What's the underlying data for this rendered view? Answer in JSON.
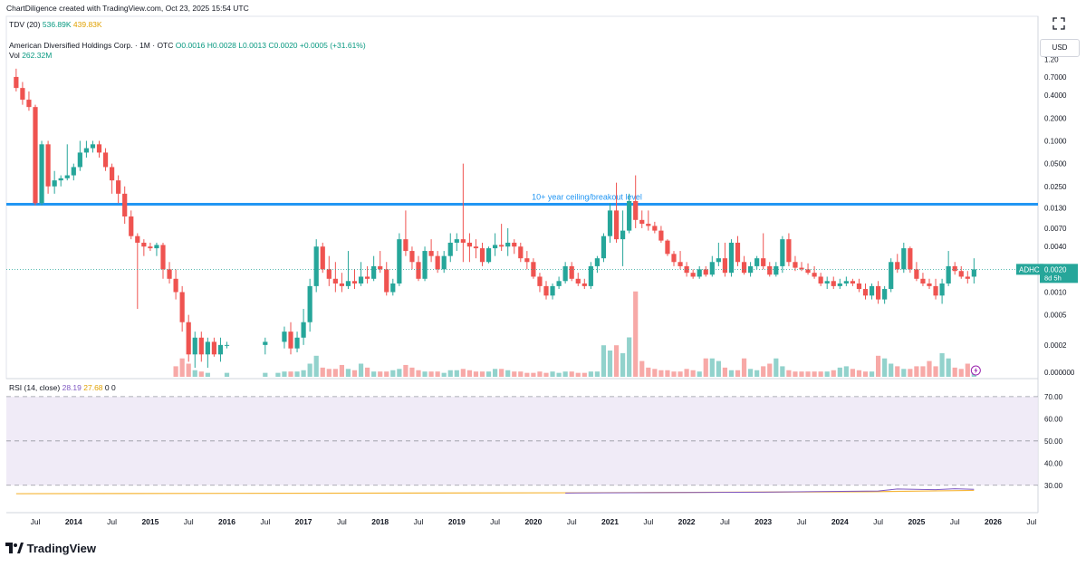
{
  "header": {
    "creator_line": "ChartDiligence created with TradingView.com, Oct 23, 2025 15:54 UTC"
  },
  "tdv": {
    "label": "TDV (20)",
    "v1": "536.89K",
    "v2": "439.83K"
  },
  "symbol": {
    "title": "American Diversified Holdings Corp. · 1M · OTC",
    "open": "O0.0016",
    "high": "H0.0028",
    "low": "L0.0013",
    "close": "C0.0020",
    "change": "+0.0005 (+31.61%)"
  },
  "vol": {
    "label": "Vol",
    "value": "262.32M"
  },
  "rsi": {
    "label": "RSI (14, close)",
    "v1": "28.19",
    "v2": "27.68",
    "v3": "0",
    "v4": "0"
  },
  "currency": "USD",
  "colors": {
    "up": "#26a69a",
    "down": "#ef5350",
    "line": "#2196f3",
    "rsi_bg": "#ede7f6",
    "rsi_line": "#7e57c2",
    "rsi_ma": "#f6b73c"
  },
  "price_tag": {
    "symbol": "ADHC",
    "price": "0.0020",
    "countdown": "8d 5h"
  },
  "brand": "TradingView",
  "chart_data": {
    "type": "candlestick",
    "scale": "log",
    "interval": "1M",
    "y_ticks": [
      "1.20",
      "0.7000",
      "0.4000",
      "0.2000",
      "0.1000",
      "0.0500",
      "0.0250",
      "0.0130",
      "0.0070",
      "0.0040",
      "0.0020",
      "0.0010",
      "0.0005",
      "0.0002",
      "0.000000"
    ],
    "x_ticks": [
      "Jul",
      "2014",
      "Jul",
      "2015",
      "Jul",
      "2016",
      "Jul",
      "2017",
      "Jul",
      "2018",
      "Jul",
      "2019",
      "Jul",
      "2020",
      "Jul",
      "2021",
      "Jul",
      "2022",
      "Jul",
      "2023",
      "Jul",
      "2024",
      "Jul",
      "2025",
      "Jul",
      "2026",
      "Jul"
    ],
    "annotation": {
      "text": "10+ year ceiling/breakout level",
      "level": 0.0145
    },
    "rsi_ticks": [
      "70.00",
      "60.00",
      "50.00",
      "40.00",
      "30.00"
    ],
    "rsi_range": [
      25,
      72
    ],
    "rsi_levels": [
      70,
      50,
      30
    ],
    "rsi_current": 28.19,
    "rsi_ma_current": 27.68,
    "candles": [
      [
        "2013-04",
        0.7,
        0.9,
        0.45,
        0.5
      ],
      [
        "2013-05",
        0.5,
        0.6,
        0.3,
        0.35
      ],
      [
        "2013-06",
        0.35,
        0.45,
        0.25,
        0.28
      ],
      [
        "2013-07",
        0.28,
        0.3,
        0.014,
        0.015
      ],
      [
        "2013-08",
        0.015,
        0.1,
        0.014,
        0.09
      ],
      [
        "2013-09",
        0.09,
        0.1,
        0.02,
        0.025
      ],
      [
        "2013-10",
        0.025,
        0.04,
        0.02,
        0.03
      ],
      [
        "2013-11",
        0.03,
        0.035,
        0.025,
        0.032
      ],
      [
        "2013-12",
        0.032,
        0.09,
        0.03,
        0.035
      ],
      [
        "2014-01",
        0.035,
        0.05,
        0.03,
        0.045
      ],
      [
        "2014-02",
        0.045,
        0.1,
        0.04,
        0.07
      ],
      [
        "2014-03",
        0.07,
        0.1,
        0.06,
        0.08
      ],
      [
        "2014-04",
        0.08,
        0.1,
        0.07,
        0.09
      ],
      [
        "2014-05",
        0.09,
        0.1,
        0.06,
        0.07
      ],
      [
        "2014-06",
        0.07,
        0.08,
        0.04,
        0.045
      ],
      [
        "2014-07",
        0.045,
        0.05,
        0.02,
        0.03
      ],
      [
        "2014-08",
        0.03,
        0.035,
        0.015,
        0.02
      ],
      [
        "2014-09",
        0.02,
        0.025,
        0.008,
        0.01
      ],
      [
        "2014-10",
        0.01,
        0.012,
        0.005,
        0.0055
      ],
      [
        "2014-11",
        0.0055,
        0.006,
        0.0006,
        0.0045
      ],
      [
        "2014-12",
        0.0045,
        0.005,
        0.003,
        0.004
      ],
      [
        "2015-01",
        0.004,
        0.0045,
        0.0035,
        0.0038
      ],
      [
        "2015-02",
        0.0038,
        0.0045,
        0.003,
        0.0042
      ],
      [
        "2015-03",
        0.0042,
        0.0045,
        0.0015,
        0.002
      ],
      [
        "2015-04",
        0.002,
        0.0025,
        0.0013,
        0.0015
      ],
      [
        "2015-05",
        0.0015,
        0.002,
        0.0008,
        0.001
      ],
      [
        "2015-06",
        0.001,
        0.0012,
        0.0003,
        0.0004
      ],
      [
        "2015-07",
        0.0004,
        0.0005,
        0.00012,
        0.00015
      ],
      [
        "2015-08",
        0.00015,
        0.0003,
        0.0001,
        0.00025
      ],
      [
        "2015-09",
        0.00025,
        0.0003,
        0.00012,
        0.00015
      ],
      [
        "2015-10",
        0.00015,
        0.00025,
        0.0001,
        0.00022
      ],
      [
        "2015-11",
        0.00022,
        0.00025,
        0.00014,
        0.00015
      ],
      [
        "2015-12",
        0.00015,
        0.00025,
        0.00012,
        0.0002
      ],
      [
        "2016-01",
        0.0002,
        0.00022,
        0.00018,
        0.0002
      ],
      [
        "2016-07",
        0.0002,
        0.00025,
        0.00015,
        0.00022
      ],
      [
        "2016-10",
        0.00022,
        0.00035,
        0.00018,
        0.0003
      ],
      [
        "2016-11",
        0.0003,
        0.0004,
        0.00015,
        0.00018
      ],
      [
        "2016-12",
        0.00018,
        0.0003,
        0.00016,
        0.00025
      ],
      [
        "2017-01",
        0.00025,
        0.0006,
        0.0002,
        0.0004
      ],
      [
        "2017-02",
        0.0004,
        0.0015,
        0.0003,
        0.0012
      ],
      [
        "2017-03",
        0.0012,
        0.005,
        0.001,
        0.004
      ],
      [
        "2017-04",
        0.004,
        0.0045,
        0.0018,
        0.002
      ],
      [
        "2017-05",
        0.002,
        0.003,
        0.0012,
        0.0015
      ],
      [
        "2017-06",
        0.0015,
        0.0025,
        0.001,
        0.0013
      ],
      [
        "2017-07",
        0.0013,
        0.0018,
        0.001,
        0.0012
      ],
      [
        "2017-08",
        0.0012,
        0.0035,
        0.0011,
        0.0014
      ],
      [
        "2017-09",
        0.0014,
        0.002,
        0.0011,
        0.0013
      ],
      [
        "2017-10",
        0.0013,
        0.0025,
        0.0012,
        0.0016
      ],
      [
        "2017-11",
        0.0016,
        0.0022,
        0.0013,
        0.0015
      ],
      [
        "2017-12",
        0.0015,
        0.003,
        0.0014,
        0.0022
      ],
      [
        "2018-01",
        0.0022,
        0.0035,
        0.0018,
        0.002
      ],
      [
        "2018-02",
        0.002,
        0.0025,
        0.0009,
        0.001
      ],
      [
        "2018-03",
        0.001,
        0.0015,
        0.0009,
        0.0013
      ],
      [
        "2018-04",
        0.0013,
        0.006,
        0.0012,
        0.005
      ],
      [
        "2018-05",
        0.005,
        0.012,
        0.003,
        0.0035
      ],
      [
        "2018-06",
        0.0035,
        0.004,
        0.002,
        0.0025
      ],
      [
        "2018-07",
        0.0025,
        0.003,
        0.0014,
        0.0015
      ],
      [
        "2018-08",
        0.0015,
        0.004,
        0.0014,
        0.0035
      ],
      [
        "2018-09",
        0.0035,
        0.005,
        0.0025,
        0.003
      ],
      [
        "2018-10",
        0.003,
        0.0035,
        0.0018,
        0.002
      ],
      [
        "2018-11",
        0.002,
        0.0035,
        0.0018,
        0.003
      ],
      [
        "2018-12",
        0.003,
        0.006,
        0.0025,
        0.0045
      ],
      [
        "2019-01",
        0.0045,
        0.006,
        0.0035,
        0.005
      ],
      [
        "2019-02",
        0.005,
        0.05,
        0.0025,
        0.0045
      ],
      [
        "2019-03",
        0.0045,
        0.006,
        0.0025,
        0.004
      ],
      [
        "2019-04",
        0.004,
        0.005,
        0.0028,
        0.0038
      ],
      [
        "2019-05",
        0.0038,
        0.0045,
        0.0022,
        0.0025
      ],
      [
        "2019-06",
        0.0025,
        0.004,
        0.0024,
        0.0038
      ],
      [
        "2019-07",
        0.0038,
        0.006,
        0.003,
        0.0042
      ],
      [
        "2019-08",
        0.0042,
        0.008,
        0.0035,
        0.004
      ],
      [
        "2019-09",
        0.004,
        0.007,
        0.003,
        0.0045
      ],
      [
        "2019-10",
        0.0045,
        0.005,
        0.0032,
        0.004
      ],
      [
        "2019-11",
        0.004,
        0.0045,
        0.0025,
        0.0028
      ],
      [
        "2019-12",
        0.0028,
        0.0035,
        0.002,
        0.0025
      ],
      [
        "2020-01",
        0.0025,
        0.0028,
        0.0015,
        0.0016
      ],
      [
        "2020-02",
        0.0016,
        0.0018,
        0.001,
        0.0012
      ],
      [
        "2020-03",
        0.0012,
        0.0014,
        0.0008,
        0.0009
      ],
      [
        "2020-04",
        0.0009,
        0.0013,
        0.0008,
        0.0012
      ],
      [
        "2020-05",
        0.0012,
        0.0016,
        0.0011,
        0.0014
      ],
      [
        "2020-06",
        0.0014,
        0.0025,
        0.0013,
        0.0022
      ],
      [
        "2020-07",
        0.0022,
        0.0025,
        0.0014,
        0.0015
      ],
      [
        "2020-08",
        0.0015,
        0.0018,
        0.0012,
        0.0013
      ],
      [
        "2020-09",
        0.0013,
        0.0015,
        0.0011,
        0.0012
      ],
      [
        "2020-10",
        0.0012,
        0.0025,
        0.0011,
        0.0022
      ],
      [
        "2020-11",
        0.0022,
        0.003,
        0.0018,
        0.0028
      ],
      [
        "2020-12",
        0.0028,
        0.006,
        0.0025,
        0.0055
      ],
      [
        "2021-01",
        0.0055,
        0.015,
        0.0045,
        0.012
      ],
      [
        "2021-02",
        0.012,
        0.028,
        0.0045,
        0.005
      ],
      [
        "2021-03",
        0.005,
        0.012,
        0.0022,
        0.0065
      ],
      [
        "2021-04",
        0.0065,
        0.02,
        0.006,
        0.016
      ],
      [
        "2021-05",
        0.016,
        0.035,
        0.007,
        0.009
      ],
      [
        "2021-06",
        0.009,
        0.012,
        0.007,
        0.008
      ],
      [
        "2021-07",
        0.008,
        0.012,
        0.0065,
        0.0075
      ],
      [
        "2021-08",
        0.0075,
        0.0085,
        0.006,
        0.0065
      ],
      [
        "2021-09",
        0.0065,
        0.0075,
        0.0045,
        0.0048
      ],
      [
        "2021-10",
        0.0048,
        0.005,
        0.003,
        0.0032
      ],
      [
        "2021-11",
        0.0032,
        0.0035,
        0.0022,
        0.0025
      ],
      [
        "2021-12",
        0.0025,
        0.0035,
        0.002,
        0.0022
      ],
      [
        "2022-01",
        0.0022,
        0.0025,
        0.0016,
        0.0018
      ],
      [
        "2022-02",
        0.0018,
        0.002,
        0.0015,
        0.0016
      ],
      [
        "2022-03",
        0.0016,
        0.0022,
        0.0015,
        0.002
      ],
      [
        "2022-04",
        0.002,
        0.0022,
        0.0016,
        0.0017
      ],
      [
        "2022-05",
        0.0017,
        0.003,
        0.0016,
        0.0025
      ],
      [
        "2022-06",
        0.0025,
        0.0045,
        0.0022,
        0.0028
      ],
      [
        "2022-07",
        0.0028,
        0.0045,
        0.0016,
        0.0018
      ],
      [
        "2022-08",
        0.0018,
        0.005,
        0.0016,
        0.0045
      ],
      [
        "2022-09",
        0.0045,
        0.0055,
        0.0022,
        0.0025
      ],
      [
        "2022-10",
        0.0025,
        0.003,
        0.0017,
        0.0018
      ],
      [
        "2022-11",
        0.0018,
        0.0025,
        0.0016,
        0.0022
      ],
      [
        "2022-12",
        0.0022,
        0.003,
        0.002,
        0.0028
      ],
      [
        "2023-01",
        0.0028,
        0.006,
        0.002,
        0.0022
      ],
      [
        "2023-02",
        0.0022,
        0.0025,
        0.0016,
        0.0017
      ],
      [
        "2023-03",
        0.0017,
        0.0025,
        0.0016,
        0.0022
      ],
      [
        "2023-04",
        0.0022,
        0.0055,
        0.0018,
        0.005
      ],
      [
        "2023-05",
        0.005,
        0.006,
        0.0022,
        0.0025
      ],
      [
        "2023-06",
        0.0025,
        0.003,
        0.0019,
        0.0021
      ],
      [
        "2023-07",
        0.0021,
        0.0025,
        0.0019,
        0.002
      ],
      [
        "2023-08",
        0.002,
        0.0024,
        0.0017,
        0.0018
      ],
      [
        "2023-09",
        0.0018,
        0.0022,
        0.0015,
        0.0016
      ],
      [
        "2023-10",
        0.0016,
        0.0018,
        0.0012,
        0.0013
      ],
      [
        "2023-11",
        0.0013,
        0.0016,
        0.0011,
        0.0014
      ],
      [
        "2023-12",
        0.0014,
        0.0016,
        0.0011,
        0.0012
      ],
      [
        "2024-01",
        0.0012,
        0.0015,
        0.0011,
        0.0013
      ],
      [
        "2024-02",
        0.0013,
        0.0016,
        0.0012,
        0.0014
      ],
      [
        "2024-03",
        0.0014,
        0.0015,
        0.0012,
        0.0013
      ],
      [
        "2024-04",
        0.0013,
        0.0015,
        0.001,
        0.0011
      ],
      [
        "2024-05",
        0.0011,
        0.0013,
        0.0008,
        0.0009
      ],
      [
        "2024-06",
        0.0009,
        0.0013,
        0.0008,
        0.0012
      ],
      [
        "2024-07",
        0.0012,
        0.0014,
        0.0007,
        0.0008
      ],
      [
        "2024-08",
        0.0008,
        0.0012,
        0.0007,
        0.0011
      ],
      [
        "2024-09",
        0.0011,
        0.0028,
        0.001,
        0.0025
      ],
      [
        "2024-10",
        0.0025,
        0.0032,
        0.0018,
        0.002
      ],
      [
        "2024-11",
        0.002,
        0.0045,
        0.0018,
        0.0038
      ],
      [
        "2024-12",
        0.0038,
        0.004,
        0.0018,
        0.002
      ],
      [
        "2025-01",
        0.002,
        0.0025,
        0.0014,
        0.0015
      ],
      [
        "2025-02",
        0.0015,
        0.0018,
        0.0012,
        0.0013
      ],
      [
        "2025-03",
        0.0013,
        0.0015,
        0.0011,
        0.0012
      ],
      [
        "2025-04",
        0.0012,
        0.0015,
        0.0008,
        0.0009
      ],
      [
        "2025-05",
        0.0009,
        0.0015,
        0.0007,
        0.0013
      ],
      [
        "2025-06",
        0.0013,
        0.0035,
        0.0012,
        0.0022
      ],
      [
        "2025-07",
        0.0022,
        0.0025,
        0.0017,
        0.0019
      ],
      [
        "2025-08",
        0.0019,
        0.0022,
        0.0015,
        0.0016
      ],
      [
        "2025-09",
        0.0016,
        0.0019,
        0.0013,
        0.0015
      ],
      [
        "2025-10",
        0.0016,
        0.0028,
        0.0013,
        0.002
      ]
    ],
    "volume": {
      "2015-05": 8,
      "2015-06": 14,
      "2015-07": 10,
      "2015-08": 5,
      "2015-09": 4,
      "2015-10": 3,
      "2016-01": 3,
      "2016-07": 3,
      "2016-09": 3,
      "2016-10": 4,
      "2016-11": 4,
      "2016-12": 4,
      "2017-01": 5,
      "2017-02": 10,
      "2017-03": 16,
      "2017-04": 7,
      "2017-05": 6,
      "2017-06": 6,
      "2017-07": 9,
      "2017-08": 6,
      "2017-09": 5,
      "2017-10": 10,
      "2017-11": 7,
      "2017-12": 4,
      "2018-01": 4,
      "2018-02": 4,
      "2018-03": 5,
      "2018-04": 6,
      "2018-05": 9,
      "2018-06": 7,
      "2018-07": 5,
      "2018-08": 4,
      "2018-09": 4,
      "2018-10": 4,
      "2018-11": 3,
      "2018-12": 5,
      "2019-01": 5,
      "2019-02": 6,
      "2019-03": 5,
      "2019-04": 4,
      "2019-05": 4,
      "2019-06": 4,
      "2019-07": 6,
      "2019-08": 6,
      "2019-09": 5,
      "2019-10": 4,
      "2019-11": 4,
      "2019-12": 3,
      "2020-01": 3,
      "2020-02": 4,
      "2020-03": 3,
      "2020-04": 4,
      "2020-05": 3,
      "2020-06": 4,
      "2020-07": 4,
      "2020-08": 3,
      "2020-09": 3,
      "2020-10": 4,
      "2020-11": 4,
      "2020-12": 24,
      "2021-01": 20,
      "2021-02": 24,
      "2021-03": 18,
      "2021-04": 30,
      "2021-05": 65,
      "2021-06": 12,
      "2021-07": 7,
      "2021-08": 6,
      "2021-09": 5,
      "2021-10": 5,
      "2021-11": 4,
      "2021-12": 4,
      "2022-01": 6,
      "2022-02": 5,
      "2022-03": 4,
      "2022-04": 14,
      "2022-05": 14,
      "2022-06": 12,
      "2022-07": 7,
      "2022-08": 5,
      "2022-09": 5,
      "2022-10": 14,
      "2022-11": 6,
      "2022-12": 5,
      "2023-01": 8,
      "2023-02": 10,
      "2023-03": 14,
      "2023-04": 8,
      "2023-05": 5,
      "2023-06": 4,
      "2023-07": 4,
      "2023-08": 4,
      "2023-09": 4,
      "2023-10": 4,
      "2023-11": 4,
      "2023-12": 5,
      "2024-01": 7,
      "2024-02": 8,
      "2024-03": 6,
      "2024-04": 5,
      "2024-05": 4,
      "2024-06": 4,
      "2024-07": 16,
      "2024-08": 14,
      "2024-09": 10,
      "2024-10": 8,
      "2024-11": 6,
      "2024-12": 6,
      "2025-01": 8,
      "2025-02": 8,
      "2025-03": 12,
      "2025-04": 8,
      "2025-05": 18,
      "2025-06": 14,
      "2025-07": 7,
      "2025-08": 6,
      "2025-09": 10,
      "2025-10": 7
    }
  }
}
